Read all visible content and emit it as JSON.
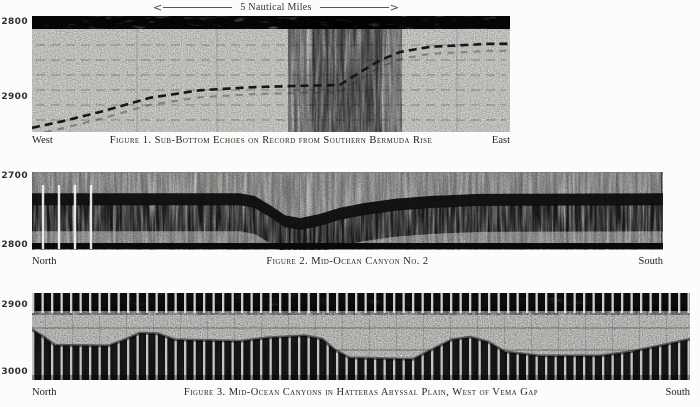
{
  "scale_bar": {
    "label": "5 Nautical Miles",
    "left_arrow": "<",
    "right_arrow": ">"
  },
  "figures": [
    {
      "id": "fig1",
      "caption": "Figure 1. Sub-Bottom Echoes on Record from Southern Bermuda Rise",
      "left_label": "West",
      "right_label": "East",
      "depth_axis": {
        "ticks": [
          "2800",
          "2900"
        ]
      },
      "profiles": [
        {
          "name": "sub-bottom-echo-trace",
          "style": "dashed-line",
          "points": [
            [
              0,
              2941
            ],
            [
              0.059,
              2933
            ],
            [
              0.142,
              2920
            ],
            [
              0.247,
              2901
            ],
            [
              0.351,
              2891
            ],
            [
              0.456,
              2887
            ],
            [
              0.561,
              2885
            ],
            [
              0.644,
              2884
            ],
            [
              0.686,
              2867
            ],
            [
              0.728,
              2851
            ],
            [
              0.77,
              2840
            ],
            [
              0.833,
              2833
            ],
            [
              0.895,
              2831
            ],
            [
              0.958,
              2829
            ],
            [
              0.996,
              2829
            ]
          ]
        }
      ]
    },
    {
      "id": "fig2",
      "caption": "Figure 2. Mid-Ocean Canyon No. 2",
      "left_label": "North",
      "right_label": "South",
      "depth_axis": {
        "ticks": [
          "2700",
          "2800"
        ]
      },
      "profiles": [
        {
          "name": "seafloor-echo-band",
          "style": "band",
          "points": [
            [
              0,
              2725
            ],
            [
              0.33,
              2725
            ],
            [
              0.353,
              2729
            ],
            [
              0.377,
              2742
            ],
            [
              0.401,
              2757
            ],
            [
              0.425,
              2761
            ],
            [
              0.456,
              2755
            ],
            [
              0.488,
              2746
            ],
            [
              0.528,
              2739
            ],
            [
              0.575,
              2733
            ],
            [
              0.631,
              2729
            ],
            [
              0.71,
              2726
            ],
            [
              1.0,
              2725
            ]
          ]
        }
      ]
    },
    {
      "id": "fig3",
      "caption": "Figure 3. Mid-Ocean Canyons in Hatteras Abyssal Plain, West of Vema Gap",
      "left_label": "North",
      "right_label": "South",
      "depth_axis": {
        "ticks": [
          "2900",
          "3000"
        ]
      },
      "profiles": [
        {
          "name": "seafloor-echo-mass",
          "style": "mass",
          "points": [
            [
              0,
              2937
            ],
            [
              0.015,
              2946
            ],
            [
              0.035,
              2960
            ],
            [
              0.116,
              2961
            ],
            [
              0.141,
              2952
            ],
            [
              0.164,
              2942
            ],
            [
              0.191,
              2943
            ],
            [
              0.217,
              2952
            ],
            [
              0.316,
              2954
            ],
            [
              0.359,
              2949
            ],
            [
              0.415,
              2946
            ],
            [
              0.441,
              2951
            ],
            [
              0.46,
              2967
            ],
            [
              0.483,
              2979
            ],
            [
              0.579,
              2981
            ],
            [
              0.613,
              2964
            ],
            [
              0.638,
              2952
            ],
            [
              0.666,
              2948
            ],
            [
              0.693,
              2955
            ],
            [
              0.719,
              2970
            ],
            [
              0.772,
              2976
            ],
            [
              0.863,
              2976
            ],
            [
              0.909,
              2970
            ],
            [
              0.954,
              2961
            ],
            [
              1.0,
              2951
            ]
          ]
        }
      ]
    }
  ]
}
